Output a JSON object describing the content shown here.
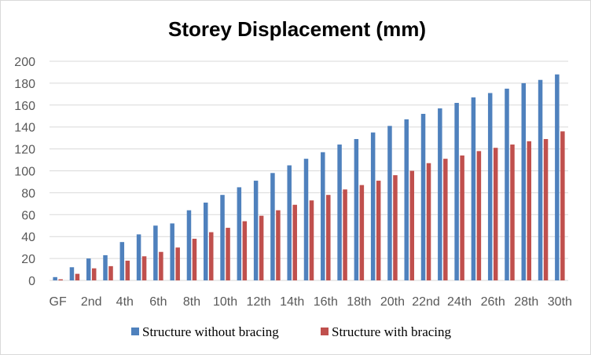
{
  "chart_data": {
    "type": "bar",
    "title": "Storey Displacement (mm)",
    "xlabel": "",
    "ylabel": "",
    "ylim": [
      0,
      200
    ],
    "yticks": [
      0,
      20,
      40,
      60,
      80,
      100,
      120,
      140,
      160,
      180,
      200
    ],
    "grid": true,
    "legend_position": "bottom",
    "categories": [
      "GF",
      "1st",
      "2nd",
      "3rd",
      "4th",
      "5th",
      "6th",
      "7th",
      "8th",
      "9th",
      "10th",
      "11th",
      "12th",
      "13th",
      "14th",
      "15th",
      "16th",
      "17th",
      "18th",
      "19th",
      "20th",
      "21st",
      "22nd",
      "23rd",
      "24th",
      "25th",
      "26th",
      "27th",
      "28th",
      "29th",
      "30th"
    ],
    "visible_xticks": [
      "GF",
      "2nd",
      "4th",
      "6th",
      "8th",
      "10th",
      "12th",
      "14th",
      "16th",
      "18th",
      "20th",
      "22nd",
      "24th",
      "26th",
      "28th",
      "30th"
    ],
    "series": [
      {
        "name": "Structure without bracing",
        "color": "#4f81bd",
        "values": [
          3,
          12,
          20,
          23,
          35,
          42,
          50,
          52,
          64,
          71,
          78,
          85,
          91,
          98,
          105,
          111,
          117,
          124,
          129,
          135,
          141,
          147,
          152,
          157,
          162,
          167,
          171,
          175,
          180,
          183,
          188
        ]
      },
      {
        "name": "Structure with bracing",
        "color": "#c0504d",
        "values": [
          1,
          6,
          11,
          13,
          18,
          22,
          26,
          30,
          38,
          44,
          48,
          54,
          59,
          64,
          69,
          73,
          78,
          83,
          87,
          91,
          96,
          100,
          107,
          111,
          114,
          118,
          121,
          124,
          127,
          129,
          136
        ]
      }
    ]
  }
}
